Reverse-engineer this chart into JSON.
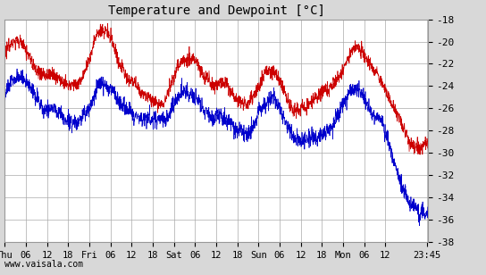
{
  "title": "Temperature and Dewpoint [°C]",
  "ylim": [
    -38,
    -18
  ],
  "yticks": [
    -38,
    -36,
    -34,
    -32,
    -30,
    -28,
    -26,
    -24,
    -22,
    -20,
    -18
  ],
  "bg_color": "#d8d8d8",
  "plot_bg_color": "#ffffff",
  "grid_color": "#aaaaaa",
  "temp_color": "#cc0000",
  "dewp_color": "#0000cc",
  "watermark": "www.vaisala.com",
  "xtick_labels": [
    "Thu",
    "06",
    "12",
    "18",
    "Fri",
    "06",
    "12",
    "18",
    "Sat",
    "06",
    "12",
    "18",
    "Sun",
    "06",
    "12",
    "18",
    "Mon",
    "06",
    "12",
    "23:45"
  ],
  "n_points": 2016,
  "temp_base": -23.0,
  "dewp_base": -26.5
}
